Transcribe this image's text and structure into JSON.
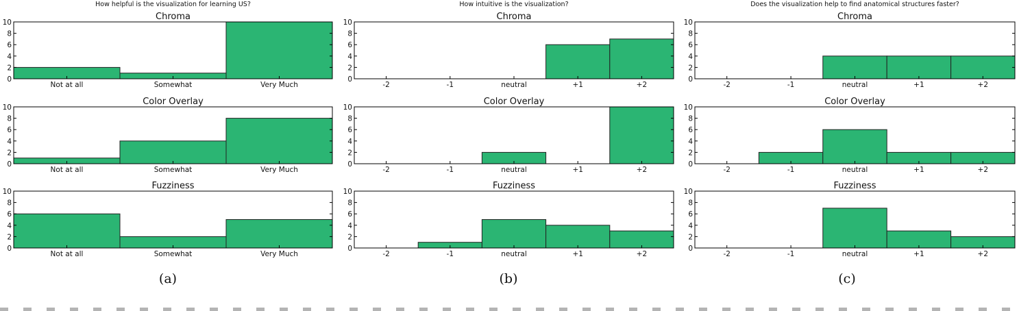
{
  "colors": {
    "bar": "#2bb573",
    "bar_edge": "#222222",
    "axis": "#000000"
  },
  "caption_labels": [
    "(a)",
    "(b)",
    "(c)"
  ],
  "chart_data": [
    {
      "type": "bar",
      "panel": "(a)",
      "title": "How helpful is the visualization for learning US?",
      "categories": [
        "Not at all",
        "Somewhat",
        "Very Much"
      ],
      "ylim": [
        0,
        10
      ],
      "yticks": [
        "0",
        "2",
        "4",
        "6",
        "8",
        "10"
      ],
      "subplots": [
        {
          "title": "Chroma",
          "values": [
            2,
            1,
            10
          ]
        },
        {
          "title": "Color Overlay",
          "values": [
            1,
            4,
            8
          ]
        },
        {
          "title": "Fuzziness",
          "values": [
            6,
            2,
            5
          ]
        }
      ]
    },
    {
      "type": "bar",
      "panel": "(b)",
      "title": "How intuitive is the visualization?",
      "categories": [
        "-2",
        "-1",
        "neutral",
        "+1",
        "+2"
      ],
      "ylim": [
        0,
        10
      ],
      "yticks": [
        "0",
        "2",
        "4",
        "6",
        "8",
        "10"
      ],
      "subplots": [
        {
          "title": "Chroma",
          "values": [
            0,
            0,
            0,
            6,
            7
          ]
        },
        {
          "title": "Color Overlay",
          "values": [
            0,
            0,
            2,
            0,
            10
          ]
        },
        {
          "title": "Fuzziness",
          "values": [
            0,
            1,
            5,
            4,
            3
          ]
        }
      ]
    },
    {
      "type": "bar",
      "panel": "(c)",
      "title": "Does the visualization help to find anatomical structures faster?",
      "categories": [
        "-2",
        "-1",
        "neutral",
        "+1",
        "+2"
      ],
      "ylim": [
        0,
        10
      ],
      "yticks": [
        "0",
        "2",
        "4",
        "6",
        "8",
        "10"
      ],
      "subplots": [
        {
          "title": "Chroma",
          "values": [
            0,
            0,
            4,
            4,
            4
          ]
        },
        {
          "title": "Color Overlay",
          "values": [
            0,
            2,
            6,
            2,
            2
          ]
        },
        {
          "title": "Fuzziness",
          "values": [
            0,
            0,
            7,
            3,
            2
          ]
        }
      ]
    }
  ]
}
